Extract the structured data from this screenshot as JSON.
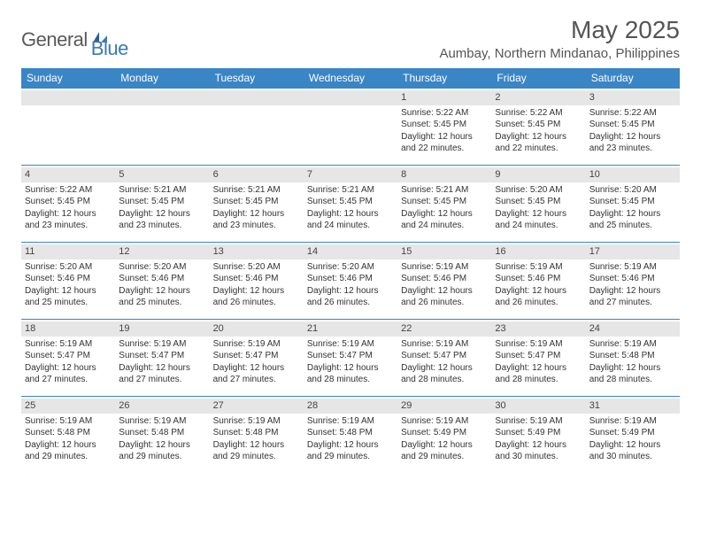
{
  "logo": {
    "general": "General",
    "blue": "Blue"
  },
  "title": {
    "month_year": "May 2025",
    "location": "Aumbay, Northern Mindanao, Philippines"
  },
  "colors": {
    "header_bg": "#3a85c6",
    "header_text": "#ffffff",
    "daynum_bg": "#e6e6e6",
    "border": "#3a85c6",
    "logo_gray": "#5a5a5a",
    "logo_blue": "#3a7ab8"
  },
  "weekdays": [
    "Sunday",
    "Monday",
    "Tuesday",
    "Wednesday",
    "Thursday",
    "Friday",
    "Saturday"
  ],
  "weeks": [
    [
      {
        "empty": true
      },
      {
        "empty": true
      },
      {
        "empty": true
      },
      {
        "empty": true
      },
      {
        "day": "1",
        "sunrise": "Sunrise: 5:22 AM",
        "sunset": "Sunset: 5:45 PM",
        "daylight": "Daylight: 12 hours and 22 minutes."
      },
      {
        "day": "2",
        "sunrise": "Sunrise: 5:22 AM",
        "sunset": "Sunset: 5:45 PM",
        "daylight": "Daylight: 12 hours and 22 minutes."
      },
      {
        "day": "3",
        "sunrise": "Sunrise: 5:22 AM",
        "sunset": "Sunset: 5:45 PM",
        "daylight": "Daylight: 12 hours and 23 minutes."
      }
    ],
    [
      {
        "day": "4",
        "sunrise": "Sunrise: 5:22 AM",
        "sunset": "Sunset: 5:45 PM",
        "daylight": "Daylight: 12 hours and 23 minutes."
      },
      {
        "day": "5",
        "sunrise": "Sunrise: 5:21 AM",
        "sunset": "Sunset: 5:45 PM",
        "daylight": "Daylight: 12 hours and 23 minutes."
      },
      {
        "day": "6",
        "sunrise": "Sunrise: 5:21 AM",
        "sunset": "Sunset: 5:45 PM",
        "daylight": "Daylight: 12 hours and 23 minutes."
      },
      {
        "day": "7",
        "sunrise": "Sunrise: 5:21 AM",
        "sunset": "Sunset: 5:45 PM",
        "daylight": "Daylight: 12 hours and 24 minutes."
      },
      {
        "day": "8",
        "sunrise": "Sunrise: 5:21 AM",
        "sunset": "Sunset: 5:45 PM",
        "daylight": "Daylight: 12 hours and 24 minutes."
      },
      {
        "day": "9",
        "sunrise": "Sunrise: 5:20 AM",
        "sunset": "Sunset: 5:45 PM",
        "daylight": "Daylight: 12 hours and 24 minutes."
      },
      {
        "day": "10",
        "sunrise": "Sunrise: 5:20 AM",
        "sunset": "Sunset: 5:45 PM",
        "daylight": "Daylight: 12 hours and 25 minutes."
      }
    ],
    [
      {
        "day": "11",
        "sunrise": "Sunrise: 5:20 AM",
        "sunset": "Sunset: 5:46 PM",
        "daylight": "Daylight: 12 hours and 25 minutes."
      },
      {
        "day": "12",
        "sunrise": "Sunrise: 5:20 AM",
        "sunset": "Sunset: 5:46 PM",
        "daylight": "Daylight: 12 hours and 25 minutes."
      },
      {
        "day": "13",
        "sunrise": "Sunrise: 5:20 AM",
        "sunset": "Sunset: 5:46 PM",
        "daylight": "Daylight: 12 hours and 26 minutes."
      },
      {
        "day": "14",
        "sunrise": "Sunrise: 5:20 AM",
        "sunset": "Sunset: 5:46 PM",
        "daylight": "Daylight: 12 hours and 26 minutes."
      },
      {
        "day": "15",
        "sunrise": "Sunrise: 5:19 AM",
        "sunset": "Sunset: 5:46 PM",
        "daylight": "Daylight: 12 hours and 26 minutes."
      },
      {
        "day": "16",
        "sunrise": "Sunrise: 5:19 AM",
        "sunset": "Sunset: 5:46 PM",
        "daylight": "Daylight: 12 hours and 26 minutes."
      },
      {
        "day": "17",
        "sunrise": "Sunrise: 5:19 AM",
        "sunset": "Sunset: 5:46 PM",
        "daylight": "Daylight: 12 hours and 27 minutes."
      }
    ],
    [
      {
        "day": "18",
        "sunrise": "Sunrise: 5:19 AM",
        "sunset": "Sunset: 5:47 PM",
        "daylight": "Daylight: 12 hours and 27 minutes."
      },
      {
        "day": "19",
        "sunrise": "Sunrise: 5:19 AM",
        "sunset": "Sunset: 5:47 PM",
        "daylight": "Daylight: 12 hours and 27 minutes."
      },
      {
        "day": "20",
        "sunrise": "Sunrise: 5:19 AM",
        "sunset": "Sunset: 5:47 PM",
        "daylight": "Daylight: 12 hours and 27 minutes."
      },
      {
        "day": "21",
        "sunrise": "Sunrise: 5:19 AM",
        "sunset": "Sunset: 5:47 PM",
        "daylight": "Daylight: 12 hours and 28 minutes."
      },
      {
        "day": "22",
        "sunrise": "Sunrise: 5:19 AM",
        "sunset": "Sunset: 5:47 PM",
        "daylight": "Daylight: 12 hours and 28 minutes."
      },
      {
        "day": "23",
        "sunrise": "Sunrise: 5:19 AM",
        "sunset": "Sunset: 5:47 PM",
        "daylight": "Daylight: 12 hours and 28 minutes."
      },
      {
        "day": "24",
        "sunrise": "Sunrise: 5:19 AM",
        "sunset": "Sunset: 5:48 PM",
        "daylight": "Daylight: 12 hours and 28 minutes."
      }
    ],
    [
      {
        "day": "25",
        "sunrise": "Sunrise: 5:19 AM",
        "sunset": "Sunset: 5:48 PM",
        "daylight": "Daylight: 12 hours and 29 minutes."
      },
      {
        "day": "26",
        "sunrise": "Sunrise: 5:19 AM",
        "sunset": "Sunset: 5:48 PM",
        "daylight": "Daylight: 12 hours and 29 minutes."
      },
      {
        "day": "27",
        "sunrise": "Sunrise: 5:19 AM",
        "sunset": "Sunset: 5:48 PM",
        "daylight": "Daylight: 12 hours and 29 minutes."
      },
      {
        "day": "28",
        "sunrise": "Sunrise: 5:19 AM",
        "sunset": "Sunset: 5:48 PM",
        "daylight": "Daylight: 12 hours and 29 minutes."
      },
      {
        "day": "29",
        "sunrise": "Sunrise: 5:19 AM",
        "sunset": "Sunset: 5:49 PM",
        "daylight": "Daylight: 12 hours and 29 minutes."
      },
      {
        "day": "30",
        "sunrise": "Sunrise: 5:19 AM",
        "sunset": "Sunset: 5:49 PM",
        "daylight": "Daylight: 12 hours and 30 minutes."
      },
      {
        "day": "31",
        "sunrise": "Sunrise: 5:19 AM",
        "sunset": "Sunset: 5:49 PM",
        "daylight": "Daylight: 12 hours and 30 minutes."
      }
    ]
  ]
}
